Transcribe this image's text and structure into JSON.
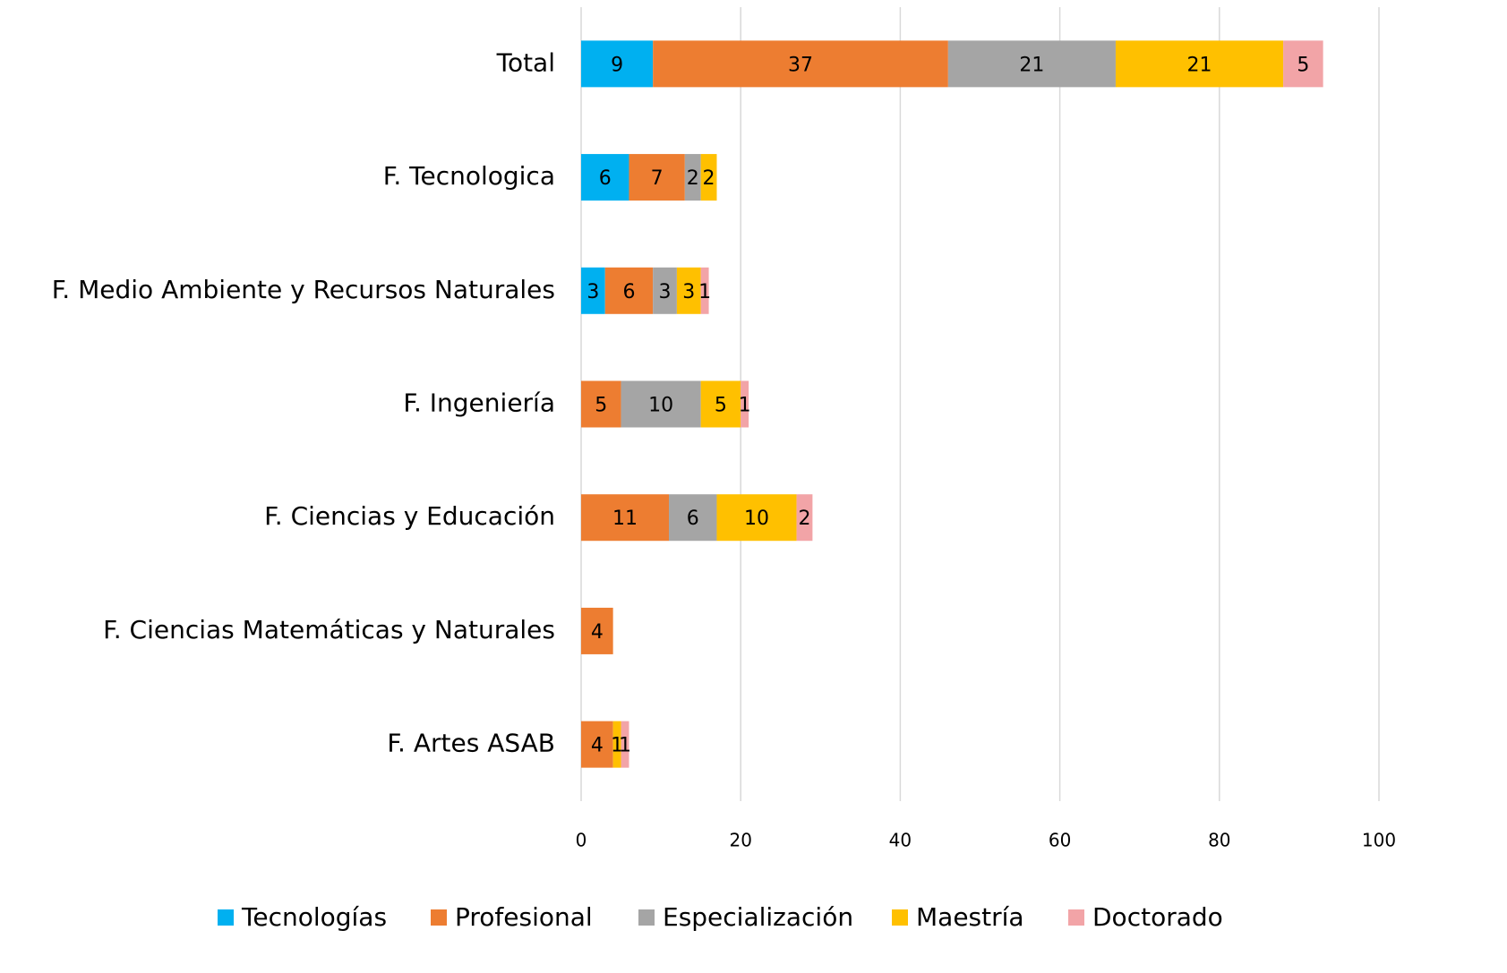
{
  "chart_data": {
    "type": "stacked_barh",
    "categories": [
      "Total",
      "F. Tecnologica",
      "F. Medio Ambiente y Recursos Naturales",
      "F. Ingeniería",
      "F. Ciencias y Educación",
      "F. Ciencias Matemáticas y Naturales",
      "F. Artes ASAB"
    ],
    "series": [
      {
        "name": "Tecnologías",
        "color": "#00b0f0",
        "values": [
          9,
          6,
          3,
          null,
          null,
          null,
          null
        ]
      },
      {
        "name": "Profesional",
        "color": "#ed7d31",
        "values": [
          37,
          7,
          6,
          5,
          11,
          4,
          4
        ]
      },
      {
        "name": "Especialización",
        "color": "#a5a5a5",
        "values": [
          21,
          2,
          3,
          10,
          6,
          null,
          null
        ]
      },
      {
        "name": "Maestría",
        "color": "#ffc000",
        "values": [
          21,
          2,
          3,
          5,
          10,
          null,
          1
        ]
      },
      {
        "name": "Doctorado",
        "color": "#f2a4a7",
        "values": [
          5,
          null,
          1,
          1,
          2,
          null,
          1
        ]
      }
    ],
    "xlim": [
      0,
      100
    ],
    "xticks": [
      0,
      20,
      40,
      60,
      80,
      100
    ],
    "grid": true,
    "legend": "bottom"
  }
}
